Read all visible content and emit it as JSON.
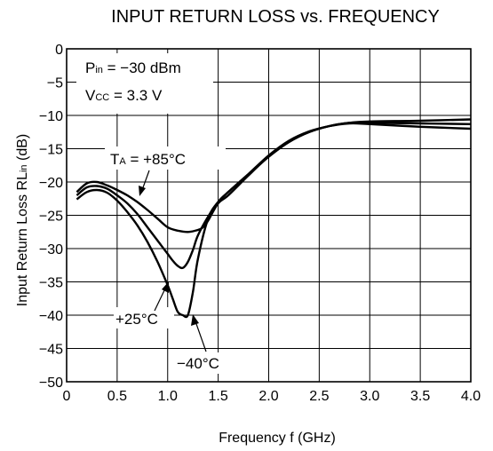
{
  "chart_data": {
    "type": "line",
    "title": "INPUT RETURN LOSS vs. FREQUENCY",
    "xlabel": "Frequency f (GHz)",
    "ylabel_main": "Input Return Loss  RL",
    "ylabel_sub": "in",
    "ylabel_unit": " (dB)",
    "xlim": [
      0,
      4.0
    ],
    "ylim": [
      -50,
      0
    ],
    "x_ticks": [
      0,
      0.5,
      1.0,
      1.5,
      2.0,
      2.5,
      3.0,
      3.5,
      4.0
    ],
    "x_tick_labels": [
      "0",
      "0.5",
      "1.0",
      "1.5",
      "2.0",
      "2.5",
      "3.0",
      "3.5",
      "4.0"
    ],
    "y_ticks": [
      0,
      -5,
      -10,
      -15,
      -20,
      -25,
      -30,
      -35,
      -40,
      -45,
      -50
    ],
    "y_tick_labels": [
      "0",
      "−5",
      "−10",
      "−15",
      "−20",
      "−25",
      "−30",
      "−35",
      "−40",
      "−45",
      "−50"
    ],
    "grid": true,
    "conditions": {
      "pin_main": "P",
      "pin_sub": "in",
      "pin_rest": " = −30 dBm",
      "vcc_main": "V",
      "vcc_sub": "CC",
      "vcc_rest": " = 3.3 V"
    },
    "annotations": [
      {
        "main": "T",
        "sub": "A",
        "rest": " = +85°C"
      },
      {
        "main": "+25°C"
      },
      {
        "main": "−40°C"
      }
    ],
    "series": [
      {
        "x": [
          0.1,
          0.2,
          0.3,
          0.4,
          0.5,
          0.6,
          0.7,
          0.8,
          0.9,
          1.0,
          1.1,
          1.2,
          1.3,
          1.35,
          1.4,
          1.5,
          1.6,
          1.8,
          2.0,
          2.2,
          2.4,
          2.6,
          2.8,
          3.0,
          3.5,
          4.0
        ],
        "y": [
          -21.5,
          -20.2,
          -20.0,
          -20.5,
          -21.2,
          -22.0,
          -23.0,
          -24.2,
          -25.5,
          -26.8,
          -27.3,
          -27.5,
          -27.2,
          -26.8,
          -25.8,
          -23.2,
          -22.0,
          -19.0,
          -16.2,
          -14.0,
          -12.5,
          -11.6,
          -11.1,
          -10.9,
          -10.8,
          -10.6
        ]
      },
      {
        "x": [
          0.1,
          0.2,
          0.3,
          0.4,
          0.5,
          0.6,
          0.7,
          0.8,
          0.9,
          1.0,
          1.05,
          1.1,
          1.15,
          1.2,
          1.25,
          1.3,
          1.4,
          1.5,
          1.6,
          1.8,
          2.0,
          2.2,
          2.4,
          2.6,
          2.8,
          3.0,
          3.5,
          4.0
        ],
        "y": [
          -22.0,
          -20.8,
          -20.6,
          -21.0,
          -22.0,
          -23.2,
          -24.8,
          -26.8,
          -28.8,
          -30.8,
          -31.8,
          -32.6,
          -32.9,
          -32.0,
          -30.2,
          -28.0,
          -25.2,
          -23.0,
          -21.5,
          -18.8,
          -16.2,
          -14.0,
          -12.5,
          -11.6,
          -11.1,
          -11.1,
          -11.2,
          -11.3
        ]
      },
      {
        "x": [
          0.1,
          0.2,
          0.3,
          0.4,
          0.5,
          0.6,
          0.7,
          0.8,
          0.9,
          1.0,
          1.05,
          1.1,
          1.15,
          1.2,
          1.25,
          1.3,
          1.4,
          1.5,
          1.6,
          1.8,
          2.0,
          2.2,
          2.4,
          2.6,
          2.8,
          3.0,
          3.5,
          4.0
        ],
        "y": [
          -22.6,
          -21.5,
          -21.2,
          -21.6,
          -22.8,
          -24.5,
          -26.5,
          -29.0,
          -32.0,
          -35.5,
          -37.5,
          -39.5,
          -40.0,
          -40.0,
          -36.5,
          -31.5,
          -25.5,
          -23.0,
          -21.5,
          -18.8,
          -16.0,
          -13.8,
          -12.4,
          -11.6,
          -11.2,
          -11.3,
          -11.7,
          -12.0
        ]
      }
    ]
  }
}
